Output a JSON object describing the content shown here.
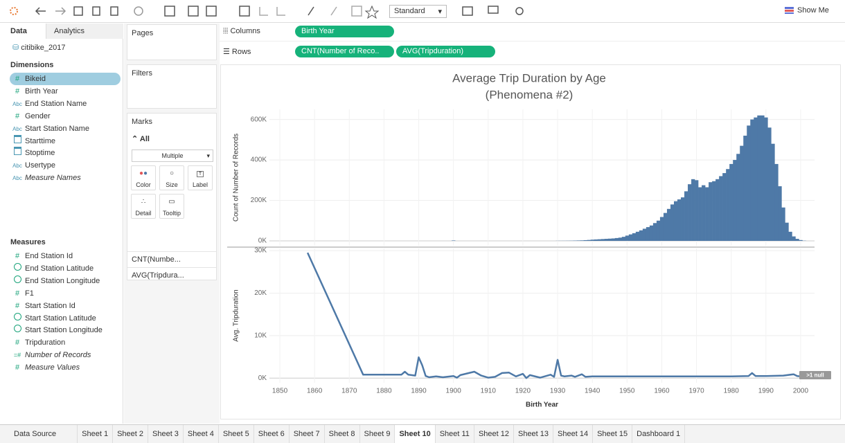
{
  "toolbar": {
    "fit": "Standard",
    "show_me": "Show Me"
  },
  "sidebar": {
    "tabs": [
      "Data",
      "Analytics"
    ],
    "datasource": "citibike_2017",
    "dimensions_title": "Dimensions",
    "dimensions": [
      {
        "icon": "#",
        "name": "Bikeid"
      },
      {
        "icon": "#",
        "name": "Birth Year"
      },
      {
        "icon": "Abc",
        "name": "End Station Name"
      },
      {
        "icon": "#",
        "name": "Gender"
      },
      {
        "icon": "Abc",
        "name": "Start Station Name"
      },
      {
        "name": "Starttime"
      },
      {
        "name": "Stoptime"
      },
      {
        "icon": "Abc",
        "name": "Usertype"
      },
      {
        "icon": "Abc",
        "name": "Measure Names",
        "italic": true
      }
    ],
    "measures_title": "Measures",
    "measures": [
      {
        "icon": "#",
        "name": "End Station Id"
      },
      {
        "name": "End Station Latitude"
      },
      {
        "name": "End Station Longitude"
      },
      {
        "icon": "#",
        "name": "F1"
      },
      {
        "icon": "#",
        "name": "Start Station Id"
      },
      {
        "name": "Start Station Latitude"
      },
      {
        "name": "Start Station Longitude"
      },
      {
        "icon": "#",
        "name": "Tripduration"
      },
      {
        "icon": "=#",
        "name": "Number of Records",
        "italic": true
      },
      {
        "icon": "#",
        "name": "Measure Values",
        "italic": true
      }
    ]
  },
  "shelves": {
    "pages": "Pages",
    "filters": "Filters",
    "columns_label": "Columns",
    "columns_pills": [
      "Birth Year"
    ],
    "rows_label": "Rows",
    "rows_pills": [
      "CNT(Number of Reco..",
      "AVG(Tripduration)"
    ]
  },
  "marks": {
    "title": "Marks",
    "all": "All",
    "mark_type": "Multiple",
    "buttons": [
      "Color",
      "Size",
      "Label",
      "Detail",
      "Tooltip"
    ],
    "cards": [
      "CNT(Numbe...",
      "AVG(Tripdura..."
    ]
  },
  "tabs": {
    "data_source": "Data Source",
    "sheets": [
      "Sheet 1",
      "Sheet 2",
      "Sheet 3",
      "Sheet 4",
      "Sheet 5",
      "Sheet 6",
      "Sheet 7",
      "Sheet 8",
      "Sheet 9",
      "Sheet 10",
      "Sheet 11",
      "Sheet 12",
      "Sheet 13",
      "Sheet 14",
      "Sheet 15",
      "Dashboard 1"
    ],
    "active": 9
  },
  "chart_data": [
    {
      "type": "bar",
      "title": "Average Trip Duration by Age",
      "subtitle": "(Phenomena #2)",
      "ylabel": "Count of Number of Records",
      "color": "#4e79a7",
      "grid": true,
      "x": [
        1900,
        1930,
        1931,
        1932,
        1933,
        1934,
        1935,
        1936,
        1937,
        1938,
        1939,
        1940,
        1941,
        1942,
        1943,
        1944,
        1945,
        1946,
        1947,
        1948,
        1949,
        1950,
        1951,
        1952,
        1953,
        1954,
        1955,
        1956,
        1957,
        1958,
        1959,
        1960,
        1961,
        1962,
        1963,
        1964,
        1965,
        1966,
        1967,
        1968,
        1969,
        1970,
        1971,
        1972,
        1973,
        1974,
        1975,
        1976,
        1977,
        1978,
        1979,
        1980,
        1981,
        1982,
        1983,
        1984,
        1985,
        1986,
        1987,
        1988,
        1989,
        1990,
        1991,
        1992,
        1993,
        1994,
        1995,
        1996,
        1997,
        1998,
        1999,
        2000,
        2001
      ],
      "values": [
        2000,
        500,
        500,
        600,
        800,
        1000,
        1500,
        2000,
        2500,
        3500,
        4500,
        6000,
        7000,
        8000,
        9000,
        10000,
        11000,
        12000,
        14000,
        16000,
        20000,
        26000,
        32000,
        38000,
        45000,
        52000,
        60000,
        68000,
        76000,
        88000,
        100000,
        118000,
        138000,
        158000,
        180000,
        196000,
        205000,
        215000,
        245000,
        280000,
        305000,
        300000,
        265000,
        275000,
        265000,
        290000,
        295000,
        305000,
        320000,
        335000,
        355000,
        380000,
        400000,
        430000,
        470000,
        520000,
        570000,
        600000,
        610000,
        620000,
        620000,
        610000,
        560000,
        480000,
        380000,
        270000,
        165000,
        90000,
        45000,
        22000,
        10000,
        4000,
        1000
      ],
      "xlim": [
        1847,
        2004
      ],
      "ylim": [
        -24000,
        650000
      ],
      "yticks": [
        {
          "value": 0,
          "label": "0K"
        },
        {
          "value": 200000,
          "label": "200K"
        },
        {
          "value": 400000,
          "label": "400K"
        },
        {
          "value": 600000,
          "label": "600K"
        }
      ]
    },
    {
      "type": "line",
      "ylabel": "Avg. Tripduration",
      "xlabel": "Birth Year",
      "color": "#4e79a7",
      "grid": true,
      "annotation": ">1 null",
      "x": [
        1858,
        1874,
        1880,
        1885,
        1886,
        1887,
        1889,
        1890,
        1891,
        1892,
        1893,
        1895,
        1897,
        1900,
        1901,
        1902,
        1906,
        1908,
        1910,
        1912,
        1914,
        1916,
        1918,
        1920,
        1921,
        1922,
        1925,
        1928,
        1929,
        1930,
        1931,
        1932,
        1934,
        1935,
        1937,
        1938,
        1940,
        1950,
        1960,
        1970,
        1980,
        1985,
        1986,
        1987,
        1990,
        1995,
        1998,
        1999,
        2000,
        2001
      ],
      "values": [
        29500,
        800,
        800,
        800,
        1500,
        800,
        600,
        4900,
        3000,
        500,
        200,
        400,
        200,
        500,
        100,
        700,
        1500,
        600,
        100,
        300,
        1200,
        1300,
        400,
        1000,
        0,
        700,
        100,
        800,
        300,
        4300,
        600,
        400,
        600,
        300,
        900,
        300,
        400,
        400,
        400,
        400,
        400,
        500,
        1200,
        500,
        500,
        600,
        900,
        500,
        400,
        400
      ],
      "xlim": [
        1847,
        2004
      ],
      "ylim": [
        -1100,
        30500
      ],
      "yticks": [
        {
          "value": 0,
          "label": "0K"
        },
        {
          "value": 10000,
          "label": "10K"
        },
        {
          "value": 20000,
          "label": "20K"
        },
        {
          "value": 30000,
          "label": "30K"
        }
      ],
      "xticks": [
        1850,
        1860,
        1870,
        1880,
        1890,
        1900,
        1910,
        1920,
        1930,
        1940,
        1950,
        1960,
        1970,
        1980,
        1990,
        2000
      ]
    }
  ]
}
